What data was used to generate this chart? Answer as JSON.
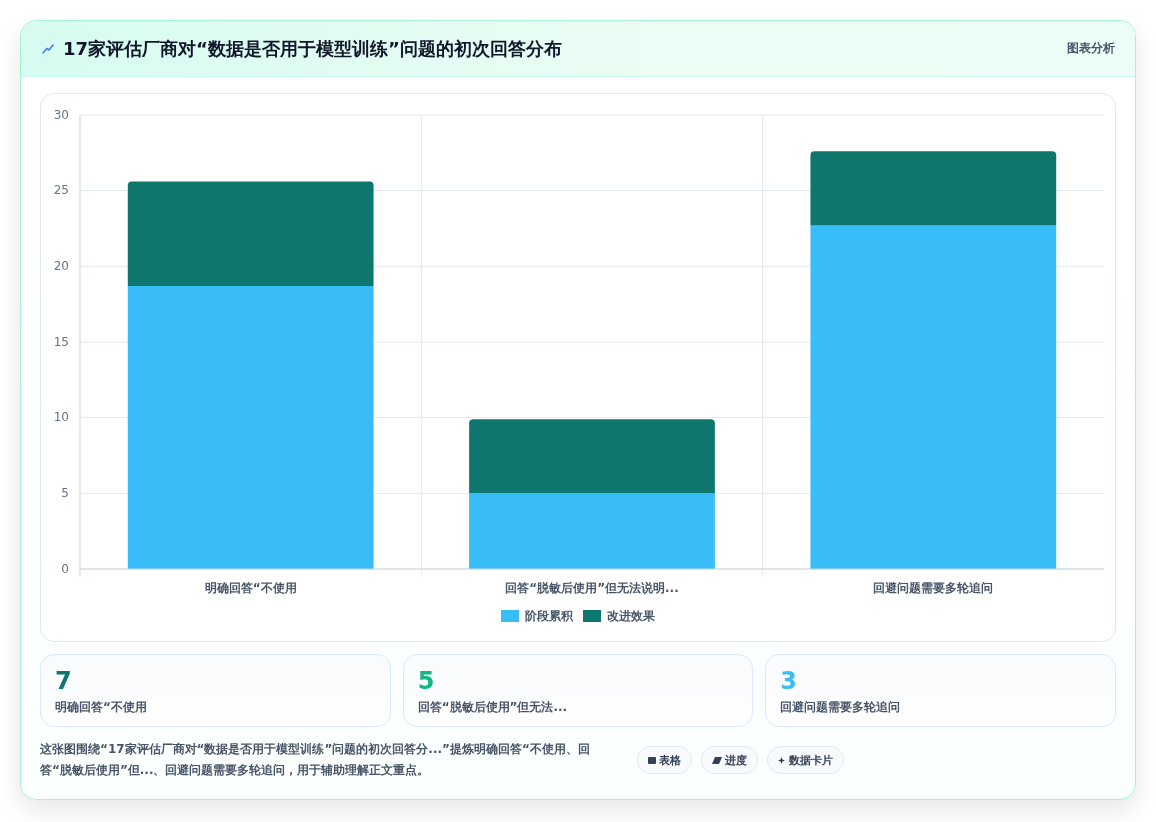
{
  "chart_data": [
    {
      "type": "bar",
      "title": "17家评估厂商对“数据是否用于模型训练”问题的初次回答分布",
      "categories": [
        "明确回答“不使用",
        "回答“脱敏后使用”但无法说明...",
        "回避问题需要多轮追问"
      ],
      "series": [
        {
          "name": "阶段累积",
          "color": "#38bdf8",
          "values": [
            18.7,
            5.0,
            22.7
          ]
        },
        {
          "name": "改进效果",
          "color": "#0f766e",
          "values": [
            6.9,
            4.9,
            4.9
          ]
        }
      ],
      "stacked": true,
      "ylim": [
        0,
        30
      ],
      "yticks": [
        0,
        5,
        10,
        15,
        20,
        25,
        30
      ],
      "grid": true,
      "legend": "bottom",
      "annotations": [
        "图表分析",
        "这张图围绕“17家评估厂商对“数据是否用于模型训练”问题的初次回答分...”提炼明确回答“不使用、回答“脱敏后使用”但...、回避问题需要多轮追问，用于辅助理解正文重点。",
        "表格",
        "进度",
        "数据卡片"
      ]
    },
    {
      "type": "other",
      "categories": [
        "明确回答“不使用",
        "回答“脱敏后使用”但无法...",
        "回避问题需要多轮追问"
      ],
      "values": [
        7,
        5,
        3
      ],
      "data_labels": true
    }
  ]
}
